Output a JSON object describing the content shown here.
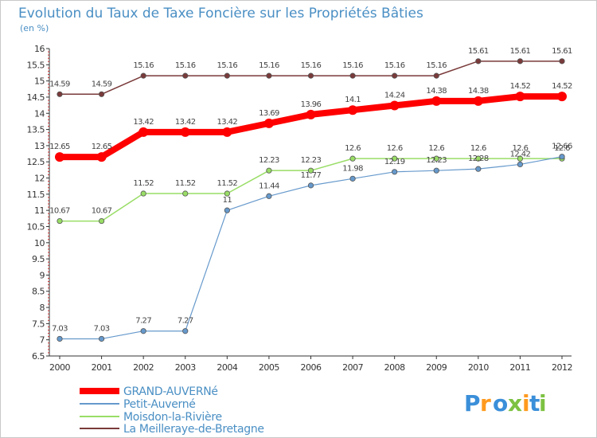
{
  "chart_data": {
    "type": "line",
    "title": "Evolution du Taux de Taxe Foncière sur les Propriétés Bâties",
    "ylabel": "(en %)",
    "xlabel": "",
    "categories": [
      "2000",
      "2001",
      "2002",
      "2003",
      "2004",
      "2005",
      "2006",
      "2007",
      "2008",
      "2009",
      "2010",
      "2011",
      "2012"
    ],
    "ylim": [
      6.5,
      16
    ],
    "yticks": [
      "6.5",
      "7",
      "7.5",
      "8",
      "8.5",
      "9",
      "9.5",
      "10",
      "10.5",
      "11",
      "11.5",
      "12",
      "12.5",
      "13",
      "13.5",
      "14",
      "14.5",
      "15",
      "15.5",
      "16"
    ],
    "series": [
      {
        "name": "GRAND-AUVERNé",
        "color": "#ff0000",
        "values": [
          12.65,
          12.65,
          13.42,
          13.42,
          13.42,
          13.69,
          13.96,
          14.1,
          14.24,
          14.38,
          14.38,
          14.52,
          14.52
        ],
        "labels": [
          "12.65",
          "12.65",
          "13.42",
          "13.42",
          "13.42",
          "13.69",
          "13.96",
          "14.1",
          "14.24",
          "14.38",
          "14.38",
          "14.52",
          "14.52"
        ]
      },
      {
        "name": "Petit-Auverné",
        "color": "#6699cc",
        "values": [
          7.03,
          7.03,
          7.27,
          7.27,
          11,
          11.44,
          11.77,
          11.98,
          12.19,
          12.23,
          12.28,
          12.42,
          12.66
        ],
        "labels": [
          "7.03",
          "7.03",
          "7.27",
          "7.27",
          "11",
          "11.44",
          "11.77",
          "11.98",
          "12.19",
          "12.23",
          "12.28",
          "12.42",
          "12.66"
        ]
      },
      {
        "name": "Moisdon-la-Rivière",
        "color": "#99dd66",
        "values": [
          10.67,
          10.67,
          11.52,
          11.52,
          11.52,
          12.23,
          12.23,
          12.6,
          12.6,
          12.6,
          12.6,
          12.6,
          12.6
        ],
        "labels": [
          "10.67",
          "10.67",
          "11.52",
          "11.52",
          "11.52",
          "12.23",
          "12.23",
          "12.6",
          "12.6",
          "12.6",
          "12.6",
          "12.6",
          "12.6"
        ]
      },
      {
        "name": "La Meilleraye-de-Bretagne",
        "color": "#7a3a3a",
        "values": [
          14.59,
          14.59,
          15.16,
          15.16,
          15.16,
          15.16,
          15.16,
          15.16,
          15.16,
          15.16,
          15.61,
          15.61,
          15.61
        ],
        "labels": [
          "14.59",
          "14.59",
          "15.16",
          "15.16",
          "15.16",
          "15.16",
          "15.16",
          "15.16",
          "15.16",
          "15.16",
          "15.61",
          "15.61",
          "15.61"
        ]
      }
    ],
    "grid": false,
    "legend_position": "bottom-left"
  },
  "brand": {
    "logo_letters": [
      "P",
      "r",
      "o",
      "x",
      "i",
      "t",
      "i"
    ],
    "logo_colors": [
      "#3b8fd9",
      "#ff9a1f",
      "#3b8fd9",
      "#7dc242",
      "#ff9a1f",
      "#3b8fd9",
      "#7dc242"
    ]
  }
}
